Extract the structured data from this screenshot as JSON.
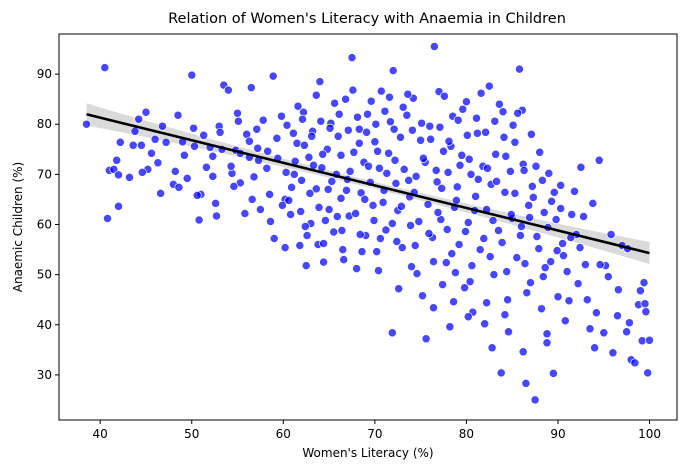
{
  "chart_data": {
    "type": "scatter",
    "title": "Relation of Women's Literacy with Anaemia in Children",
    "xlabel": "Women's Literacy (%)",
    "ylabel": "Anaemic Children (%)",
    "xlim": [
      35.5,
      103.0
    ],
    "ylim": [
      21.0,
      98.0
    ],
    "xticks": [
      40,
      50,
      60,
      70,
      80,
      90,
      100
    ],
    "yticks": [
      30,
      40,
      50,
      60,
      70,
      80,
      90
    ],
    "grid": false,
    "legend": "none",
    "colors": {
      "points": "#0000ff",
      "regression_line": "#000000",
      "confidence_band": "#bbbbbb"
    },
    "regression": {
      "x_range": [
        38.5,
        100.0
      ],
      "slope": -0.45,
      "intercept": 99.3,
      "ci_halfwidth": {
        "at_ends": 2.2,
        "at_center": 0.7
      }
    },
    "points": [
      [
        38.5,
        80.0
      ],
      [
        40.5,
        91.3
      ],
      [
        40.8,
        61.2
      ],
      [
        41.0,
        70.8
      ],
      [
        41.5,
        71.0
      ],
      [
        42.0,
        63.6
      ],
      [
        42.2,
        76.4
      ],
      [
        42.0,
        69.9
      ],
      [
        43.2,
        69.4
      ],
      [
        44.5,
        75.8
      ],
      [
        45.0,
        82.4
      ],
      [
        45.2,
        71.0
      ],
      [
        46.3,
        72.3
      ],
      [
        46.0,
        77.0
      ],
      [
        48.0,
        68.0
      ],
      [
        48.5,
        81.8
      ],
      [
        49.0,
        76.5
      ],
      [
        49.5,
        69.2
      ],
      [
        50.0,
        89.8
      ],
      [
        50.3,
        75.6
      ],
      [
        50.8,
        60.9
      ],
      [
        51.0,
        66.0
      ],
      [
        52.0,
        75.4
      ],
      [
        52.3,
        69.6
      ],
      [
        52.7,
        61.7
      ],
      [
        53.0,
        79.6
      ],
      [
        53.5,
        87.8
      ],
      [
        54.0,
        86.8
      ],
      [
        54.4,
        70.2
      ],
      [
        54.8,
        74.8
      ],
      [
        55.0,
        82.2
      ],
      [
        55.3,
        68.3
      ],
      [
        55.8,
        62.2
      ],
      [
        56.0,
        78.0
      ],
      [
        56.3,
        73.4
      ],
      [
        56.5,
        87.3
      ],
      [
        56.8,
        69.5
      ],
      [
        57.2,
        75.2
      ],
      [
        57.5,
        63.0
      ],
      [
        57.8,
        80.8
      ],
      [
        58.2,
        71.2
      ],
      [
        58.5,
        66.0
      ],
      [
        58.9,
        89.6
      ],
      [
        59.0,
        57.2
      ],
      [
        59.4,
        73.2
      ],
      [
        59.8,
        81.6
      ],
      [
        60.2,
        65.0
      ],
      [
        60.4,
        79.8
      ],
      [
        60.8,
        62.0
      ],
      [
        61.2,
        70.0
      ],
      [
        61.5,
        76.2
      ],
      [
        61.8,
        55.8
      ],
      [
        62.0,
        68.8
      ],
      [
        62.2,
        82.4
      ],
      [
        62.5,
        51.8
      ],
      [
        62.8,
        73.4
      ],
      [
        63.0,
        60.2
      ],
      [
        63.2,
        78.6
      ],
      [
        63.6,
        67.1
      ],
      [
        63.8,
        56.0
      ],
      [
        64.0,
        88.5
      ],
      [
        64.2,
        71.3
      ],
      [
        64.4,
        52.5
      ],
      [
        64.8,
        75.0
      ],
      [
        65.0,
        63.0
      ],
      [
        65.2,
        80.2
      ],
      [
        65.5,
        58.5
      ],
      [
        65.8,
        70.0
      ],
      [
        66.0,
        77.6
      ],
      [
        66.3,
        65.2
      ],
      [
        66.5,
        55.0
      ],
      [
        66.8,
        85.0
      ],
      [
        67.0,
        69.0
      ],
      [
        67.2,
        61.7
      ],
      [
        67.5,
        93.3
      ],
      [
        67.7,
        74.4
      ],
      [
        68.0,
        51.2
      ],
      [
        68.3,
        79.0
      ],
      [
        68.5,
        66.3
      ],
      [
        68.8,
        72.4
      ],
      [
        69.0,
        57.8
      ],
      [
        69.2,
        82.0
      ],
      [
        69.5,
        68.4
      ],
      [
        69.8,
        63.8
      ],
      [
        70.0,
        76.5
      ],
      [
        70.2,
        54.6
      ],
      [
        70.5,
        71.2
      ],
      [
        70.7,
        86.6
      ],
      [
        71.0,
        66.8
      ],
      [
        71.2,
        58.9
      ],
      [
        71.5,
        74.2
      ],
      [
        71.7,
        80.5
      ],
      [
        71.9,
        38.4
      ],
      [
        72.0,
        90.7
      ],
      [
        72.3,
        68.2
      ],
      [
        72.5,
        62.8
      ],
      [
        72.8,
        77.4
      ],
      [
        73.0,
        55.4
      ],
      [
        73.2,
        71.0
      ],
      [
        73.5,
        81.8
      ],
      [
        73.8,
        65.5
      ],
      [
        74.0,
        51.6
      ],
      [
        74.2,
        85.2
      ],
      [
        74.5,
        69.6
      ],
      [
        74.8,
        60.6
      ],
      [
        75.0,
        76.8
      ],
      [
        75.2,
        45.8
      ],
      [
        75.5,
        72.4
      ],
      [
        75.8,
        64.0
      ],
      [
        76.0,
        79.6
      ],
      [
        76.3,
        57.4
      ],
      [
        76.5,
        95.5
      ],
      [
        76.8,
        68.5
      ],
      [
        77.0,
        86.5
      ],
      [
        77.2,
        61.0
      ],
      [
        77.5,
        74.6
      ],
      [
        77.8,
        52.4
      ],
      [
        78.0,
        70.4
      ],
      [
        78.2,
        39.6
      ],
      [
        78.5,
        81.6
      ],
      [
        78.7,
        63.4
      ],
      [
        79.0,
        67.5
      ],
      [
        79.2,
        56.0
      ],
      [
        79.5,
        73.8
      ],
      [
        79.8,
        47.4
      ],
      [
        80.0,
        84.5
      ],
      [
        80.2,
        60.4
      ],
      [
        80.5,
        70.0
      ],
      [
        80.7,
        42.5
      ],
      [
        81.0,
        65.6
      ],
      [
        81.2,
        78.2
      ],
      [
        81.5,
        55.0
      ],
      [
        81.8,
        71.6
      ],
      [
        82.0,
        40.2
      ],
      [
        82.2,
        63.0
      ],
      [
        82.5,
        87.6
      ],
      [
        82.7,
        68.0
      ],
      [
        83.0,
        50.0
      ],
      [
        83.2,
        74.0
      ],
      [
        83.5,
        58.8
      ],
      [
        83.8,
        30.4
      ],
      [
        84.0,
        82.5
      ],
      [
        84.2,
        66.4
      ],
      [
        84.5,
        45.0
      ],
      [
        84.8,
        70.6
      ],
      [
        85.0,
        61.2
      ],
      [
        85.3,
        76.4
      ],
      [
        85.5,
        53.4
      ],
      [
        85.8,
        91.0
      ],
      [
        86.0,
        59.6
      ],
      [
        86.2,
        72.0
      ],
      [
        86.5,
        28.3
      ],
      [
        86.8,
        63.8
      ],
      [
        87.0,
        48.4
      ],
      [
        87.2,
        67.6
      ],
      [
        87.5,
        25.0
      ],
      [
        87.7,
        57.6
      ],
      [
        88.0,
        74.4
      ],
      [
        88.2,
        43.2
      ],
      [
        88.5,
        62.4
      ],
      [
        88.8,
        36.4
      ],
      [
        89.0,
        70.2
      ],
      [
        89.2,
        52.6
      ],
      [
        89.5,
        30.3
      ],
      [
        89.8,
        61.0
      ],
      [
        90.0,
        45.6
      ],
      [
        90.3,
        67.8
      ],
      [
        90.5,
        56.2
      ],
      [
        91.0,
        50.6
      ],
      [
        91.5,
        62.0
      ],
      [
        92.0,
        58.0
      ],
      [
        92.5,
        71.4
      ],
      [
        93.0,
        52.0
      ],
      [
        93.5,
        39.2
      ],
      [
        94.0,
        35.4
      ],
      [
        94.5,
        72.8
      ],
      [
        95.0,
        38.4
      ],
      [
        95.5,
        49.6
      ],
      [
        96.0,
        34.4
      ],
      [
        96.5,
        41.8
      ],
      [
        97.0,
        55.8
      ],
      [
        97.5,
        38.6
      ],
      [
        98.0,
        33.0
      ],
      [
        98.4,
        32.4
      ],
      [
        98.8,
        44.0
      ],
      [
        99.0,
        46.8
      ],
      [
        99.2,
        36.8
      ],
      [
        99.4,
        48.4
      ],
      [
        99.6,
        42.6
      ],
      [
        99.8,
        30.4
      ],
      [
        100.0,
        36.9
      ],
      [
        99.5,
        44.2
      ],
      [
        97.8,
        40.4
      ],
      [
        95.2,
        51.8
      ],
      [
        93.2,
        45.0
      ],
      [
        91.2,
        44.8
      ],
      [
        88.4,
        49.6
      ],
      [
        86.6,
        46.4
      ],
      [
        84.6,
        38.6
      ],
      [
        82.8,
        35.4
      ],
      [
        80.4,
        48.6
      ],
      [
        78.6,
        44.6
      ],
      [
        76.4,
        43.4
      ],
      [
        74.6,
        50.2
      ],
      [
        72.6,
        47.2
      ],
      [
        70.4,
        50.8
      ],
      [
        68.6,
        54.6
      ],
      [
        66.6,
        53.0
      ],
      [
        64.6,
        60.8
      ],
      [
        62.6,
        57.8
      ],
      [
        60.6,
        64.8
      ],
      [
        58.6,
        60.6
      ],
      [
        56.6,
        65.0
      ],
      [
        54.6,
        67.6
      ],
      [
        52.6,
        64.2
      ],
      [
        50.6,
        65.8
      ],
      [
        48.6,
        67.4
      ],
      [
        46.6,
        66.2
      ],
      [
        44.6,
        70.4
      ],
      [
        43.6,
        75.8
      ],
      [
        75.3,
        73.2
      ],
      [
        76.7,
        70.8
      ],
      [
        74.3,
        66.4
      ],
      [
        72.2,
        72.8
      ],
      [
        71.3,
        70.2
      ],
      [
        73.7,
        68.8
      ],
      [
        77.3,
        67.2
      ],
      [
        78.3,
        75.6
      ],
      [
        79.3,
        71.8
      ],
      [
        80.3,
        73.0
      ],
      [
        81.3,
        69.0
      ],
      [
        82.3,
        71.2
      ],
      [
        83.3,
        68.6
      ],
      [
        84.3,
        73.6
      ],
      [
        85.3,
        66.2
      ],
      [
        86.3,
        70.8
      ],
      [
        87.3,
        65.4
      ],
      [
        88.3,
        68.8
      ],
      [
        89.3,
        64.6
      ],
      [
        90.3,
        63.2
      ],
      [
        70.3,
        74.6
      ],
      [
        69.3,
        71.6
      ],
      [
        68.3,
        76.2
      ],
      [
        67.3,
        70.6
      ],
      [
        66.3,
        73.8
      ],
      [
        65.3,
        68.6
      ],
      [
        64.3,
        74.0
      ],
      [
        63.3,
        71.8
      ],
      [
        62.3,
        75.8
      ],
      [
        61.3,
        72.6
      ],
      [
        60.3,
        70.4
      ],
      [
        59.3,
        77.2
      ],
      [
        58.3,
        74.6
      ],
      [
        57.3,
        72.8
      ],
      [
        56.3,
        76.6
      ],
      [
        55.3,
        74.2
      ],
      [
        54.3,
        71.6
      ],
      [
        53.3,
        75.0
      ],
      [
        52.3,
        73.6
      ],
      [
        51.3,
        77.8
      ],
      [
        75.9,
        58.2
      ],
      [
        76.9,
        62.4
      ],
      [
        77.9,
        59.0
      ],
      [
        78.9,
        64.8
      ],
      [
        79.9,
        58.6
      ],
      [
        80.9,
        62.8
      ],
      [
        81.9,
        57.2
      ],
      [
        82.9,
        60.8
      ],
      [
        83.9,
        56.4
      ],
      [
        84.9,
        62.0
      ],
      [
        85.9,
        57.8
      ],
      [
        86.9,
        61.4
      ],
      [
        87.9,
        55.2
      ],
      [
        88.9,
        59.4
      ],
      [
        89.9,
        54.8
      ],
      [
        73.9,
        59.8
      ],
      [
        72.9,
        63.6
      ],
      [
        71.9,
        60.2
      ],
      [
        70.9,
        64.4
      ],
      [
        69.9,
        60.8
      ],
      [
        68.9,
        65.0
      ],
      [
        67.9,
        62.2
      ],
      [
        66.9,
        66.8
      ],
      [
        65.9,
        61.6
      ],
      [
        64.9,
        67.0
      ],
      [
        63.9,
        63.4
      ],
      [
        62.9,
        66.2
      ],
      [
        61.9,
        62.6
      ],
      [
        60.9,
        67.4
      ],
      [
        59.9,
        63.8
      ],
      [
        74.1,
        78.8
      ],
      [
        75.1,
        80.2
      ],
      [
        76.1,
        77.0
      ],
      [
        77.1,
        79.4
      ],
      [
        78.1,
        76.6
      ],
      [
        79.1,
        80.8
      ],
      [
        80.1,
        77.8
      ],
      [
        81.1,
        81.2
      ],
      [
        82.1,
        78.4
      ],
      [
        83.1,
        80.6
      ],
      [
        84.1,
        77.4
      ],
      [
        85.1,
        79.8
      ],
      [
        86.1,
        82.8
      ],
      [
        87.1,
        78.0
      ],
      [
        73.1,
        83.4
      ],
      [
        72.1,
        79.0
      ],
      [
        71.1,
        82.6
      ],
      [
        70.1,
        80.0
      ],
      [
        69.1,
        78.4
      ],
      [
        68.1,
        81.4
      ],
      [
        67.1,
        78.8
      ],
      [
        66.1,
        82.0
      ],
      [
        65.1,
        79.2
      ],
      [
        64.1,
        80.6
      ],
      [
        63.1,
        77.6
      ],
      [
        62.1,
        81.0
      ],
      [
        61.1,
        78.2
      ],
      [
        57.1,
        79.0
      ],
      [
        55.1,
        80.6
      ],
      [
        53.1,
        78.4
      ],
      [
        76.4,
        52.6
      ],
      [
        78.4,
        54.2
      ],
      [
        80.6,
        51.8
      ],
      [
        82.6,
        53.6
      ],
      [
        84.4,
        50.6
      ],
      [
        86.4,
        52.2
      ],
      [
        88.6,
        51.4
      ],
      [
        90.6,
        53.8
      ],
      [
        92.4,
        55.4
      ],
      [
        94.6,
        52.0
      ],
      [
        74.4,
        55.8
      ],
      [
        72.4,
        56.6
      ],
      [
        70.6,
        57.2
      ],
      [
        68.4,
        58.0
      ],
      [
        66.4,
        58.8
      ],
      [
        64.4,
        56.2
      ],
      [
        62.4,
        59.6
      ],
      [
        60.2,
        55.4
      ],
      [
        77.6,
        85.6
      ],
      [
        79.6,
        83.0
      ],
      [
        81.6,
        86.2
      ],
      [
        83.6,
        84.0
      ],
      [
        85.6,
        82.2
      ],
      [
        73.6,
        86.0
      ],
      [
        71.6,
        85.4
      ],
      [
        69.6,
        84.6
      ],
      [
        67.6,
        86.8
      ],
      [
        65.6,
        84.2
      ],
      [
        63.6,
        85.8
      ],
      [
        61.6,
        83.6
      ],
      [
        91.8,
        66.6
      ],
      [
        93.8,
        64.2
      ],
      [
        95.8,
        58.0
      ],
      [
        97.6,
        55.2
      ],
      [
        96.6,
        47.0
      ],
      [
        94.2,
        42.4
      ],
      [
        92.2,
        48.2
      ],
      [
        90.8,
        40.8
      ],
      [
        88.8,
        38.2
      ],
      [
        86.2,
        34.6
      ],
      [
        84.2,
        42.0
      ],
      [
        82.2,
        44.4
      ],
      [
        80.2,
        41.6
      ],
      [
        78.8,
        50.4
      ],
      [
        77.4,
        48.0
      ],
      [
        75.6,
        37.2
      ],
      [
        92.8,
        61.6
      ],
      [
        91.4,
        57.4
      ],
      [
        89.6,
        66.4
      ],
      [
        87.6,
        71.6
      ],
      [
        47.2,
        76.4
      ],
      [
        48.2,
        70.6
      ],
      [
        49.2,
        73.8
      ],
      [
        50.2,
        79.2
      ],
      [
        51.6,
        71.4
      ],
      [
        45.6,
        74.2
      ],
      [
        43.8,
        78.6
      ],
      [
        41.8,
        72.8
      ],
      [
        44.2,
        81.0
      ],
      [
        46.8,
        79.6
      ]
    ]
  }
}
